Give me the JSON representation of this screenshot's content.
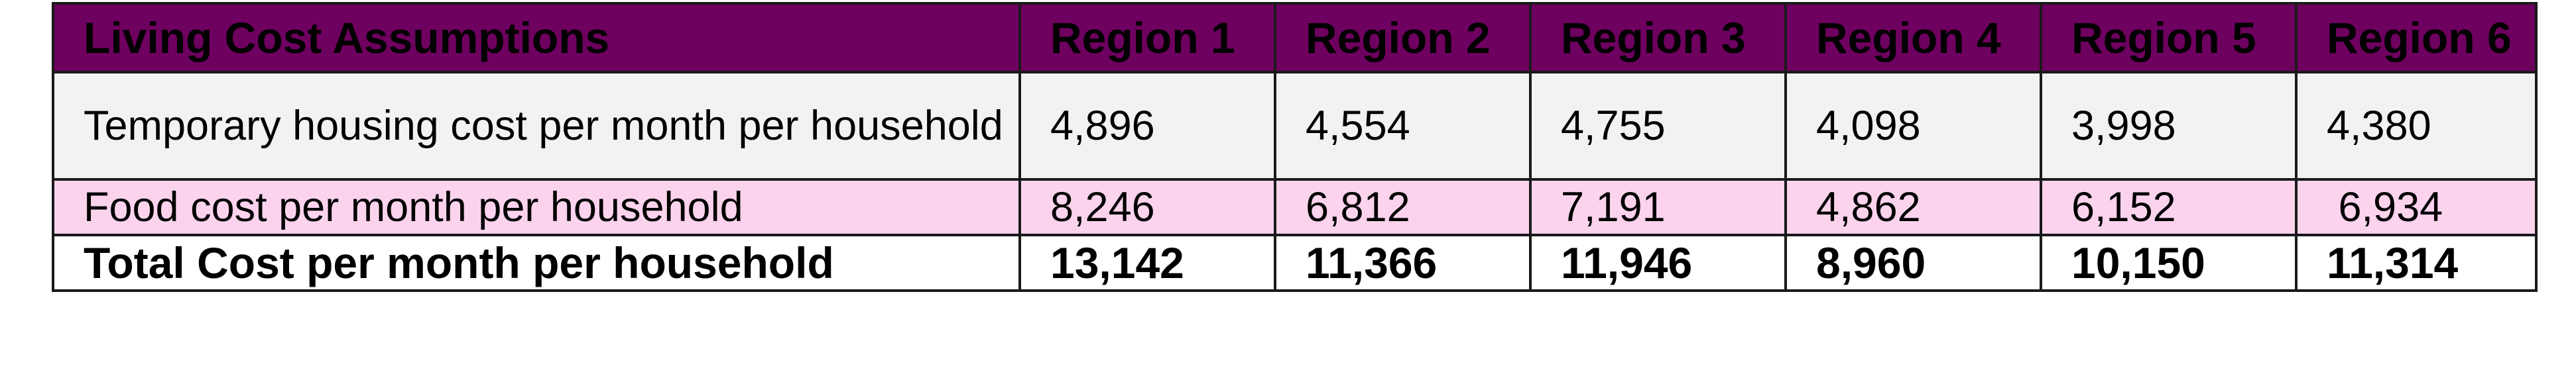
{
  "table": {
    "header": {
      "label": "Living Cost Assumptions",
      "regions": [
        "Region 1",
        "Region 2",
        "Region 3",
        "Region 4",
        "Region 5",
        "Region 6"
      ]
    },
    "rows": [
      {
        "label": "Temporary housing cost per month per household",
        "values": [
          "4,896",
          "4,554",
          "4,755",
          "4,098",
          "3,998",
          "4,380"
        ]
      },
      {
        "label": "Food cost per month per household",
        "values": [
          "8,246",
          "6,812",
          "7,191",
          "4,862",
          "6,152",
          " 6,934"
        ]
      },
      {
        "label": "Total Cost per month per household",
        "values": [
          "13,142",
          "11,366",
          "11,946",
          "8,960",
          "10,150",
          "11,314"
        ]
      }
    ]
  },
  "colors": {
    "header_bg": "#6e005f",
    "header_text": "#ffffff",
    "row_housing_bg": "#f2f2f2",
    "row_food_bg": "#fbd3ec",
    "border": "#1a1a1a"
  }
}
